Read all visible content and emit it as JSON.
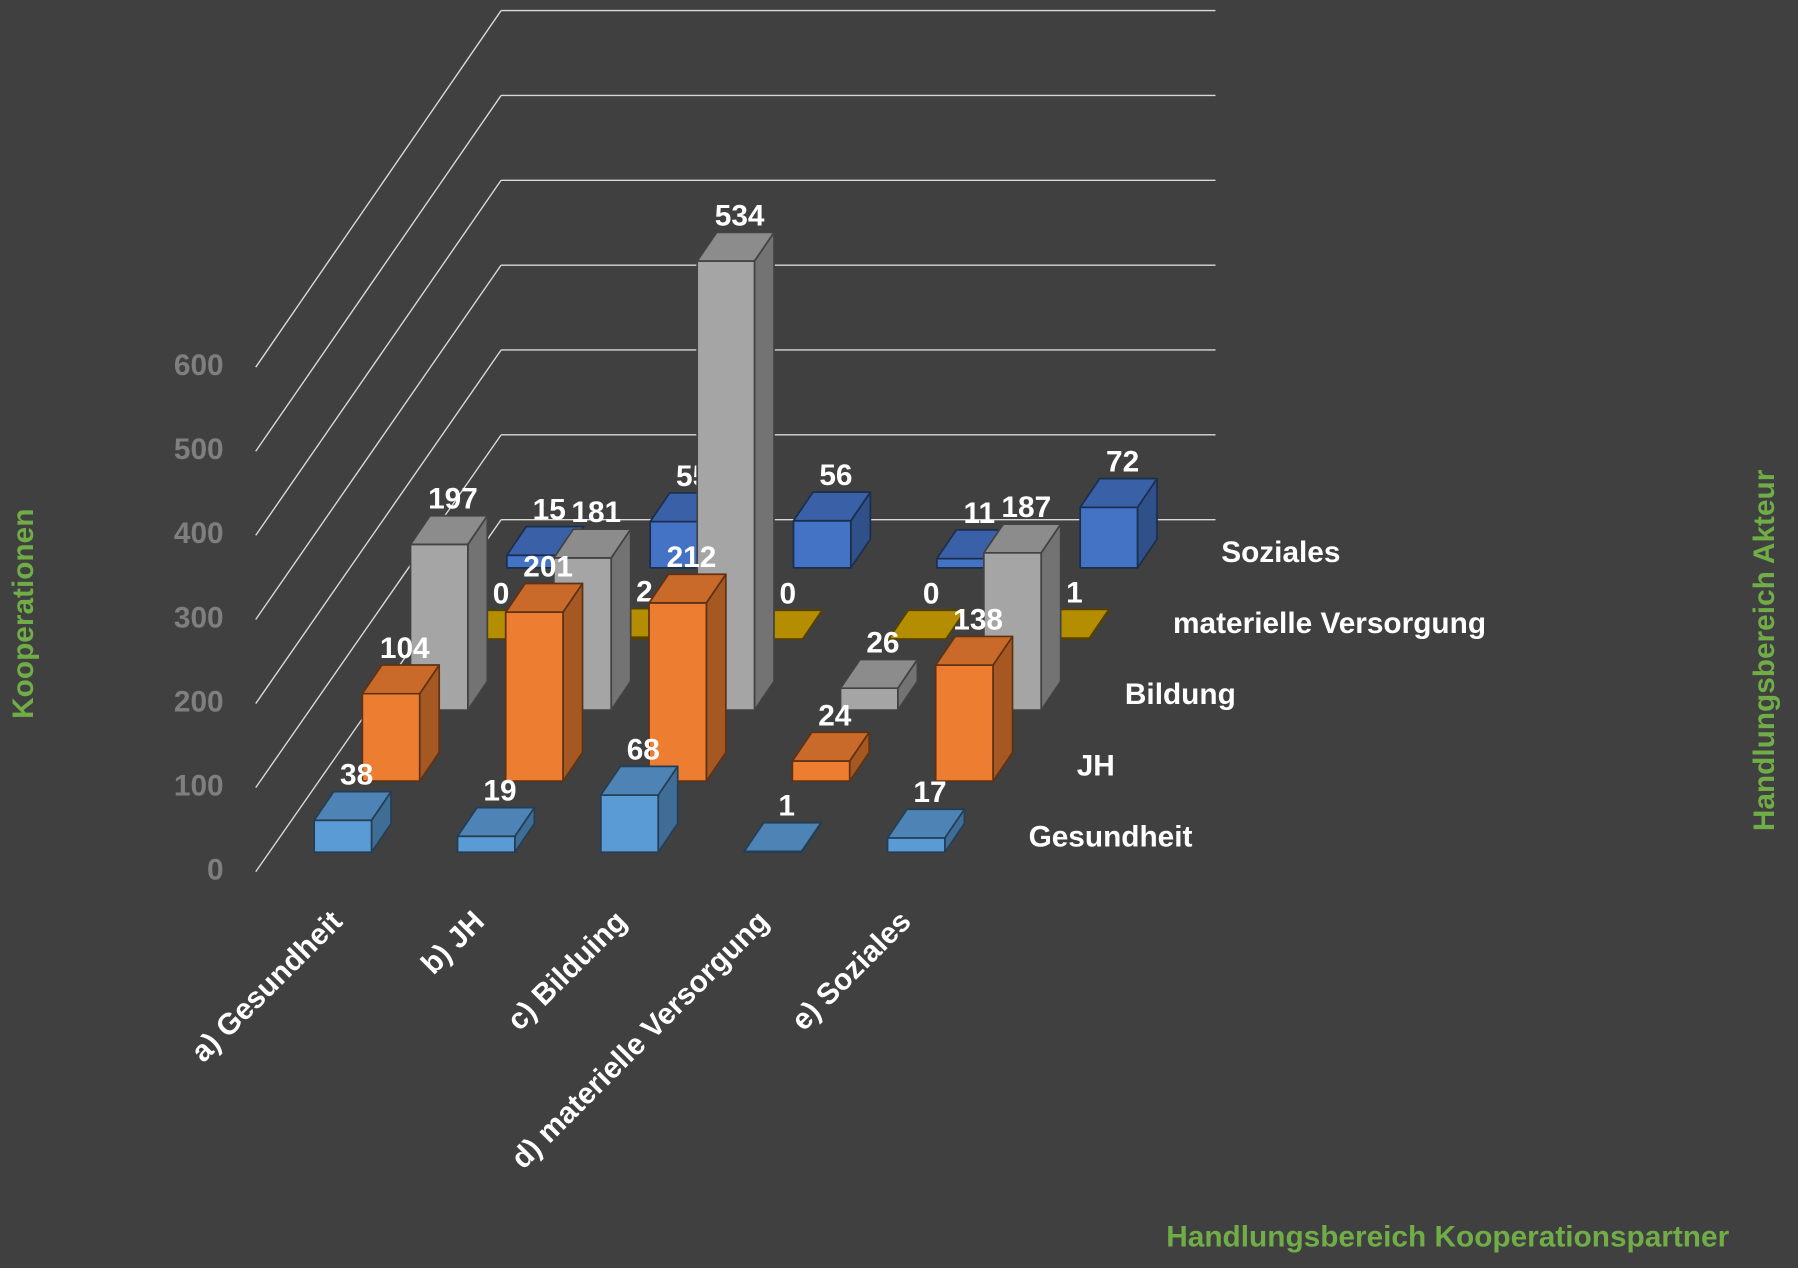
{
  "chart_data": {
    "type": "bar3d",
    "ylabel": "Kooperationen",
    "xlabel": "Handlungsbereich Kooperationspartner",
    "zlabel": "Handlungsbereich Akteur",
    "categories": [
      "a) Gesundheit",
      "b) JH",
      "c) Bilduing",
      "d) materielle Versorgung",
      "e) Soziales"
    ],
    "series": [
      {
        "name": "Gesundheit",
        "color": "#5b9bd5",
        "values": [
          38,
          19,
          68,
          1,
          17
        ]
      },
      {
        "name": "JH",
        "color": "#ed7d31",
        "values": [
          104,
          201,
          212,
          24,
          138
        ]
      },
      {
        "name": "Bildung",
        "color": "#a5a5a5",
        "values": [
          197,
          181,
          534,
          26,
          187
        ]
      },
      {
        "name": "materielle Versorgung",
        "color": "#d4a600",
        "values": [
          0,
          2,
          0,
          0,
          1
        ]
      },
      {
        "name": "Soziales",
        "color": "#4472c4",
        "values": [
          15,
          55,
          56,
          11,
          72
        ]
      }
    ],
    "ylim": [
      0,
      600
    ],
    "yticks": [
      0,
      100,
      200,
      300,
      400,
      500,
      600
    ],
    "grid": true
  }
}
